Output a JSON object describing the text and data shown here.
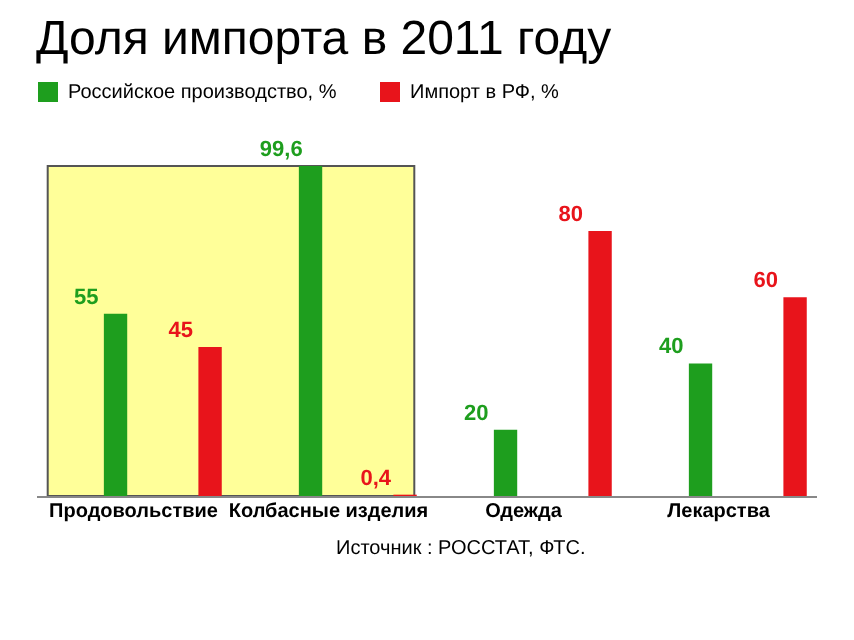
{
  "chart_data": {
    "type": "bar",
    "title": "Доля импорта в 2011 году",
    "categories": [
      "Продовольствие",
      "Колбасные изделия",
      "Одежда",
      "Лекарства"
    ],
    "series": [
      {
        "name": "Российское производство, %",
        "color": "#1e9e1e",
        "values": [
          55,
          99.6,
          20,
          40
        ],
        "value_labels": [
          "55",
          "99,6",
          "20",
          "40"
        ]
      },
      {
        "name": "Импорт в РФ, %",
        "color": "#e8141b",
        "values": [
          45,
          0.4,
          80,
          60
        ],
        "value_labels": [
          "45",
          "0,4",
          "80",
          "60"
        ]
      }
    ],
    "legend": "top",
    "grid": false,
    "bands": [
      {
        "axis": "x",
        "from": "Продовольствие",
        "to": "Колбасные изделия",
        "color": "#ffff99"
      }
    ],
    "annotations": [
      "Источник : РОССТАТ, ФТС."
    ]
  }
}
